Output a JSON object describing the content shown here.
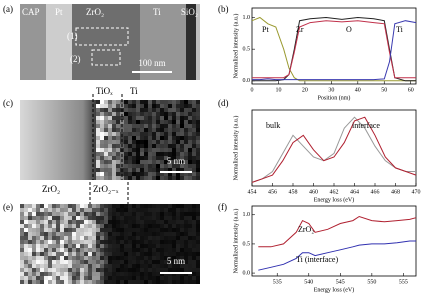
{
  "images": {
    "a": {
      "panel": "(a)",
      "layers": [
        "CAP",
        "Pt",
        "ZrO₂",
        "Ti",
        "SiO₂"
      ],
      "regions": [
        "(1)",
        "(2)"
      ],
      "scale": "100 nm"
    },
    "c": {
      "panel": "(c)",
      "layers": [
        "TiOₓ",
        "Ti"
      ],
      "scale": "5 nm"
    },
    "e": {
      "panel": "(e)",
      "layers": [
        "ZrO₂",
        "ZrO₂₋ₓ"
      ],
      "scale": "5 nm"
    }
  },
  "chart_data": [
    {
      "type": "line",
      "panel": "(b)",
      "xlabel": "Position (nm)",
      "ylabel": "Normalized intensity (a.u.)",
      "x": [
        0,
        3,
        6,
        9,
        12,
        14,
        16,
        18,
        22,
        28,
        34,
        40,
        46,
        50,
        52,
        54,
        58,
        62
      ],
      "series": [
        {
          "name": "Pt",
          "color": "#9a9a30",
          "values": [
            0.95,
            1.0,
            0.9,
            0.85,
            0.5,
            0.2,
            0.05,
            0,
            0,
            0,
            0,
            0,
            0,
            0,
            0,
            0,
            0,
            0
          ]
        },
        {
          "name": "Zr",
          "color": "#222222",
          "values": [
            0,
            0,
            0,
            0,
            0.02,
            0.1,
            0.5,
            0.95,
            0.98,
            1.0,
            0.97,
            1.0,
            0.98,
            0.95,
            0.5,
            0.05,
            0,
            0
          ]
        },
        {
          "name": "O",
          "color": "#c0304a",
          "values": [
            0.05,
            0.05,
            0.05,
            0.05,
            0.05,
            0.1,
            0.45,
            0.85,
            0.92,
            0.95,
            0.93,
            0.95,
            0.92,
            0.9,
            0.45,
            0.05,
            0.05,
            0.05
          ]
        },
        {
          "name": "Ti",
          "color": "#3a3ab0",
          "values": [
            0.02,
            0.02,
            0.03,
            0.02,
            0.02,
            0.02,
            0.02,
            0.02,
            0.02,
            0.02,
            0.02,
            0.02,
            0.02,
            0.03,
            0.3,
            0.9,
            0.95,
            0.92
          ]
        }
      ],
      "xlim": [
        0,
        62
      ],
      "ylim": [
        -0.05,
        1.15
      ],
      "xticks": [
        0,
        10,
        20,
        30,
        40,
        50,
        60
      ],
      "yticks": [
        {
          "value": 0,
          "label": "0.0"
        },
        {
          "value": 0.5,
          "label": "0.5"
        },
        {
          "value": 1,
          "label": "1.0"
        }
      ]
    },
    {
      "type": "line",
      "panel": "(d)",
      "xlabel": "Energy loss (eV)",
      "ylabel": "Normalized intensity (a.u.)",
      "x": [
        454,
        455,
        456,
        457,
        458,
        459,
        460,
        461,
        462,
        463,
        464,
        465,
        466,
        467,
        468,
        469,
        470
      ],
      "series": [
        {
          "name": "bulk",
          "color": "#999999",
          "values": [
            0.05,
            0.1,
            0.2,
            0.45,
            0.7,
            0.55,
            0.4,
            0.35,
            0.45,
            0.8,
            0.95,
            0.8,
            0.55,
            0.35,
            0.25,
            0.2,
            0.2
          ]
        },
        {
          "name": "interface",
          "color": "#b02030",
          "values": [
            0.05,
            0.1,
            0.15,
            0.35,
            0.6,
            0.7,
            0.5,
            0.35,
            0.4,
            0.6,
            0.9,
            0.95,
            0.7,
            0.4,
            0.25,
            0.2,
            0.15
          ]
        }
      ],
      "xlim": [
        454,
        470
      ],
      "ylim": [
        0,
        1.05
      ],
      "xticks": [
        454,
        456,
        458,
        460,
        462,
        464,
        466,
        468,
        470
      ],
      "yticks": []
    },
    {
      "type": "line",
      "panel": "(f)",
      "xlabel": "Energy loss (eV)",
      "ylabel": "Normalized intensity (a.u.)",
      "x": [
        532,
        534,
        536,
        538,
        539,
        540,
        541,
        543,
        545,
        547,
        548,
        550,
        552,
        554,
        556,
        557
      ],
      "series": [
        {
          "name": "ZrO₂",
          "color": "#b02030",
          "values": [
            0.45,
            0.45,
            0.5,
            0.7,
            0.9,
            0.85,
            0.7,
            0.75,
            0.85,
            0.9,
            0.97,
            0.9,
            0.88,
            0.9,
            0.92,
            0.95
          ]
        },
        {
          "name": "Ti (interface)",
          "color": "#3030b0",
          "values": [
            0.05,
            0.1,
            0.15,
            0.25,
            0.35,
            0.35,
            0.3,
            0.35,
            0.4,
            0.45,
            0.48,
            0.5,
            0.5,
            0.52,
            0.55,
            0.55
          ]
        }
      ],
      "xlim": [
        531,
        557
      ],
      "ylim": [
        -0.05,
        1.15
      ],
      "xticks": [
        535,
        540,
        545,
        550,
        555
      ],
      "yticks": [
        {
          "value": 0,
          "label": "0.0"
        },
        {
          "value": 0.5,
          "label": "0.5"
        },
        {
          "value": 1,
          "label": "1.0"
        }
      ]
    }
  ]
}
